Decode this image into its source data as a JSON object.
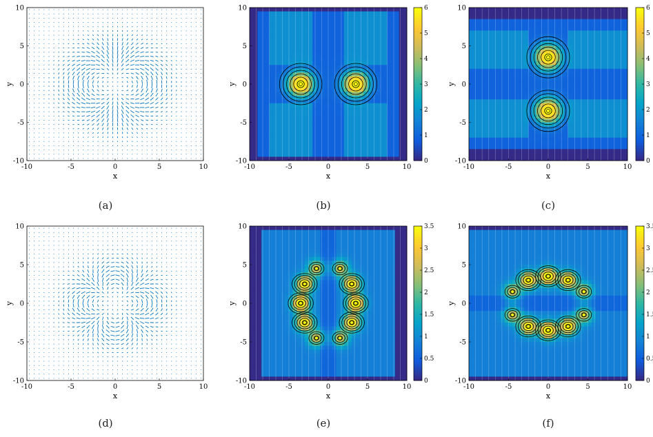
{
  "captions": [
    "(a)",
    "(b)",
    "(c)",
    "(d)",
    "(e)",
    "(f)"
  ],
  "colors": {
    "quiver": "#0072bd",
    "contour_line": "#000000",
    "grid": "#ffffff",
    "parula": [
      "#352a87",
      "#0f5cdd",
      "#1481d6",
      "#06a4ca",
      "#2eb7a4",
      "#87bf77",
      "#d1bb59",
      "#fec832",
      "#f9fb0e"
    ]
  },
  "chart_data": [
    {
      "panel": "(a)",
      "type": "quiver",
      "xlabel": "x",
      "ylabel": "y",
      "xlim": [
        -10,
        10
      ],
      "ylim": [
        -10,
        10
      ],
      "xticks": [
        "-10",
        "-5",
        "0",
        "5",
        "10"
      ],
      "yticks": [
        "-10",
        "-5",
        "0",
        "5",
        "10"
      ],
      "grid": false,
      "field": "two-lobed vortex pattern along x-axis, peaks near (±3.5, 0)"
    },
    {
      "panel": "(b)",
      "type": "heatmap",
      "xlabel": "x",
      "ylabel": "y",
      "xlim": [
        -10,
        10
      ],
      "ylim": [
        -10,
        10
      ],
      "xticks": [
        "-10",
        "-5",
        "0",
        "5",
        "10"
      ],
      "yticks": [
        "-10",
        "-5",
        "0",
        "5",
        "10"
      ],
      "colorbar": {
        "range": [
          0,
          6
        ],
        "ticks": [
          "0",
          "1",
          "2",
          "3",
          "4",
          "5",
          "6"
        ]
      },
      "peaks": [
        {
          "x": -3.5,
          "y": 0,
          "value": 6
        },
        {
          "x": 3.5,
          "y": 0,
          "value": 6
        }
      ]
    },
    {
      "panel": "(c)",
      "type": "heatmap",
      "xlabel": "x",
      "ylabel": "y",
      "xlim": [
        -10,
        10
      ],
      "ylim": [
        -10,
        10
      ],
      "xticks": [
        "-10",
        "-5",
        "0",
        "5",
        "10"
      ],
      "yticks": [
        "-10",
        "-5",
        "0",
        "5",
        "10"
      ],
      "colorbar": {
        "range": [
          0,
          6
        ],
        "ticks": [
          "0",
          "1",
          "2",
          "3",
          "4",
          "5",
          "6"
        ]
      },
      "peaks": [
        {
          "x": 0,
          "y": 3.5,
          "value": 6
        },
        {
          "x": 0,
          "y": -3.5,
          "value": 6
        }
      ]
    },
    {
      "panel": "(d)",
      "type": "quiver",
      "xlabel": "x",
      "ylabel": "y",
      "xlim": [
        -10,
        10
      ],
      "ylim": [
        -10,
        10
      ],
      "xticks": [
        "-10",
        "-5",
        "0",
        "5",
        "10"
      ],
      "yticks": [
        "-10",
        "-5",
        "0",
        "5",
        "10"
      ],
      "grid": false,
      "field": "multi-vortex pattern with lobes around origin"
    },
    {
      "panel": "(e)",
      "type": "heatmap",
      "xlabel": "x",
      "ylabel": "y",
      "xlim": [
        -10,
        10
      ],
      "ylim": [
        -10,
        10
      ],
      "xticks": [
        "-10",
        "-5",
        "0",
        "5",
        "10"
      ],
      "yticks": [
        "-10",
        "-5",
        "0",
        "5",
        "10"
      ],
      "colorbar": {
        "range": [
          0,
          3.5
        ],
        "ticks": [
          "0",
          "0.5",
          "1",
          "1.5",
          "2",
          "2.5",
          "3",
          "3.5"
        ]
      },
      "peaks": [
        {
          "x": -3.5,
          "y": 0,
          "value": 3.2
        },
        {
          "x": 3.5,
          "y": 0,
          "value": 3.2
        },
        {
          "x": -3,
          "y": 2.5,
          "value": 2.8
        },
        {
          "x": 3,
          "y": 2.5,
          "value": 2.8
        },
        {
          "x": -3,
          "y": -2.5,
          "value": 2.8
        },
        {
          "x": 3,
          "y": -2.5,
          "value": 2.8
        },
        {
          "x": -1.5,
          "y": 4.5,
          "value": 1.8
        },
        {
          "x": 1.5,
          "y": 4.5,
          "value": 1.8
        },
        {
          "x": -1.5,
          "y": -4.5,
          "value": 1.8
        },
        {
          "x": 1.5,
          "y": -4.5,
          "value": 1.8
        }
      ]
    },
    {
      "panel": "(f)",
      "type": "heatmap",
      "xlabel": "x",
      "ylabel": "y",
      "xlim": [
        -10,
        10
      ],
      "ylim": [
        -10,
        10
      ],
      "xticks": [
        "-10",
        "-5",
        "0",
        "5",
        "10"
      ],
      "yticks": [
        "-10",
        "-5",
        "0",
        "5",
        "10"
      ],
      "colorbar": {
        "range": [
          0,
          3.5
        ],
        "ticks": [
          "0",
          "0.5",
          "1",
          "1.5",
          "2",
          "2.5",
          "3",
          "3.5"
        ]
      },
      "peaks": [
        {
          "x": 0,
          "y": 3.5,
          "value": 3.2
        },
        {
          "x": 0,
          "y": -3.5,
          "value": 3.2
        },
        {
          "x": -2.5,
          "y": 3,
          "value": 2.8
        },
        {
          "x": 2.5,
          "y": 3,
          "value": 2.8
        },
        {
          "x": -2.5,
          "y": -3,
          "value": 2.8
        },
        {
          "x": 2.5,
          "y": -3,
          "value": 2.8
        },
        {
          "x": -4.5,
          "y": 1.5,
          "value": 1.8
        },
        {
          "x": 4.5,
          "y": 1.5,
          "value": 1.8
        },
        {
          "x": -4.5,
          "y": -1.5,
          "value": 1.8
        },
        {
          "x": 4.5,
          "y": -1.5,
          "value": 1.8
        }
      ]
    }
  ]
}
